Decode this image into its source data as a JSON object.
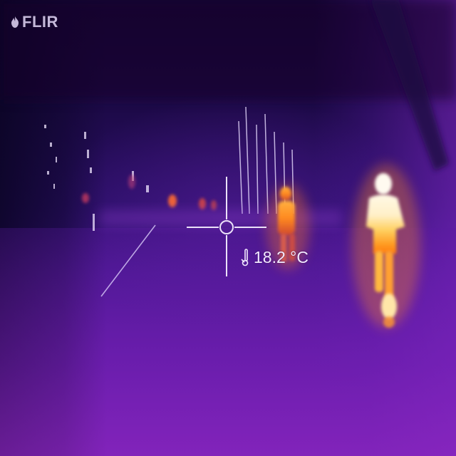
{
  "brand": {
    "logo_text": "FLIR",
    "logo_icon": "flir-flame-icon"
  },
  "measurement": {
    "spot_temperature": "18.2 °C",
    "spot_icon": "thermometer-icon",
    "crosshair_icon": "spot-meter-crosshair-icon"
  },
  "palette": {
    "name": "iron",
    "cold": "#150634",
    "mid": "#6a1eb2",
    "warm": "#ff8a18",
    "hot": "#fff6e0"
  }
}
